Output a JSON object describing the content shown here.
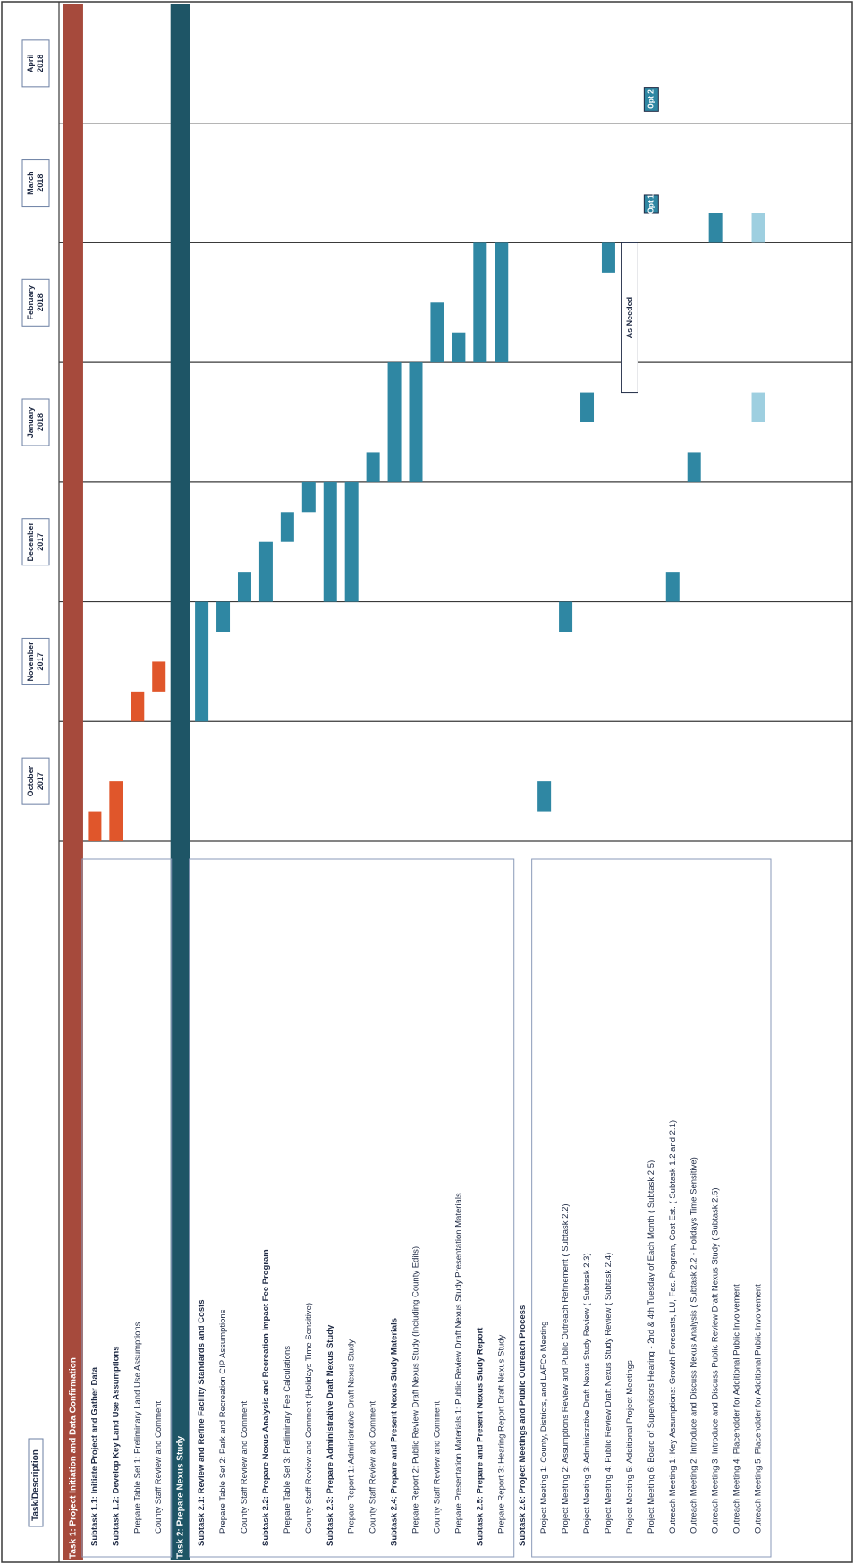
{
  "header": {
    "label": "Task/Description"
  },
  "colors": {
    "task1": "#a64a3c",
    "task2": "#1e5566",
    "bar_orange": "#e0562b",
    "bar_teal": "#2f87a3",
    "bar_light": "#9ecfe0",
    "border": "#3a3a3a"
  },
  "months": [
    {
      "label": "October\n2017"
    },
    {
      "label": "November\n2017"
    },
    {
      "label": "December\n2017"
    },
    {
      "label": "January\n2018"
    },
    {
      "label": "February\n2018"
    },
    {
      "label": "March\n2018"
    },
    {
      "label": "April\n2018"
    }
  ],
  "rows": [
    {
      "text": "Task 1: Project Initiation and Data Confirmation",
      "kind": "main",
      "color": "task1"
    },
    {
      "text": "Subtask 1.1: Initiate Project and Gather Data",
      "kind": "sub",
      "bar": [
        0.0,
        0.25
      ],
      "color": "bar_orange"
    },
    {
      "text": "Subtask 1.2: Develop Key Land Use Assumptions",
      "kind": "sub",
      "bar": [
        0.0,
        0.5
      ],
      "color": "bar_orange"
    },
    {
      "text": "Prepare Table Set 1: Preliminary Land Use Assumptions",
      "kind": "item",
      "bar": [
        1.0,
        1.25
      ],
      "color": "bar_orange"
    },
    {
      "text": "County Staff Review and Comment",
      "kind": "item",
      "bar": [
        1.25,
        1.5
      ],
      "color": "bar_orange"
    },
    {
      "text": "Task 2: Prepare Nexus Study",
      "kind": "main",
      "color": "task2"
    },
    {
      "text": "Subtask 2.1: Review and Refine Facility Standards and Costs",
      "kind": "sub",
      "bar": [
        1.0,
        2.0
      ],
      "color": "bar_teal"
    },
    {
      "text": "Prepare Table Set 2: Park and Recreation CIP Assumptions",
      "kind": "item",
      "bar": [
        1.75,
        2.0
      ],
      "color": "bar_teal"
    },
    {
      "text": "County Staff Review and Comment",
      "kind": "item",
      "bar": [
        2.0,
        2.25
      ],
      "color": "bar_teal"
    },
    {
      "text": "Subtask 2.2: Prepare Nexus Analysis and Recreation Impact Fee Program",
      "kind": "sub",
      "bar": [
        2.0,
        2.5
      ],
      "color": "bar_teal"
    },
    {
      "text": "Prepare Table Set 3: Preliminary Fee Calculations",
      "kind": "item",
      "bar": [
        2.5,
        2.75
      ],
      "color": "bar_teal"
    },
    {
      "text": "County Staff Review and Comment (Holidays Time Sensitive)",
      "kind": "item",
      "bar": [
        2.75,
        3.0
      ],
      "color": "bar_teal"
    },
    {
      "text": "Subtask 2.3: Prepare Administrative Draft Nexus Study",
      "kind": "sub",
      "bar": [
        2.0,
        3.0
      ],
      "color": "bar_teal"
    },
    {
      "text": "Prepare Report 1: Administrative Draft Nexus Study",
      "kind": "item",
      "bar": [
        2.0,
        3.0
      ],
      "color": "bar_teal"
    },
    {
      "text": "County Staff Review and Comment",
      "kind": "item",
      "bar": [
        3.0,
        3.25
      ],
      "color": "bar_teal"
    },
    {
      "text": "Subtask 2.4: Prepare and Present Nexus Study Materials",
      "kind": "sub",
      "bar": [
        3.0,
        4.0
      ],
      "color": "bar_teal"
    },
    {
      "text": "Prepare Report 2: Public Review Draft Nexus Study (Including County Edits)",
      "kind": "item",
      "bar": [
        3.0,
        4.0
      ],
      "color": "bar_teal"
    },
    {
      "text": "County Staff Review and Comment",
      "kind": "item",
      "bar": [
        4.0,
        4.5
      ],
      "color": "bar_teal"
    },
    {
      "text": "Prepare Presentation Materials 1: Public Review Draft Nexus Study Presentation Materials",
      "kind": "item",
      "bar": [
        4.0,
        4.25
      ],
      "color": "bar_teal"
    },
    {
      "text": "Subtask 2.5: Prepare and Present Nexus Study Report",
      "kind": "sub",
      "bar": [
        4.0,
        5.0
      ],
      "color": "bar_teal"
    },
    {
      "text": "Prepare Report 3: Hearing Report Draft Nexus Study",
      "kind": "item",
      "bar": [
        4.0,
        5.0
      ],
      "color": "bar_teal"
    },
    {
      "text": "Subtask 2.6: Project Meetings and Public Outreach Process",
      "kind": "sub"
    },
    {
      "text": "Project Meeting 1: County, Districts, and LAFCo Meeting",
      "kind": "item",
      "bar": [
        0.25,
        0.5
      ],
      "color": "bar_teal"
    },
    {
      "text": "Project Meeting 2: Assumptions Review and Public Outreach Refinement ( Subtask 2.2)",
      "kind": "item",
      "bar": [
        1.75,
        2.0
      ],
      "color": "bar_teal"
    },
    {
      "text": "Project Meeting 3: Administrative Draft Nexus Study Review ( Subtask 2.3)",
      "kind": "item",
      "bar": [
        3.5,
        3.75
      ],
      "color": "bar_teal"
    },
    {
      "text": "Project Meeting 4: Public Review Draft Nexus Study Review ( Subtask 2.4)",
      "kind": "item",
      "bar": [
        4.75,
        5.0
      ],
      "color": "bar_teal"
    },
    {
      "text": "Project Meeting 5: Additional Project Meetings",
      "kind": "item"
    },
    {
      "text": "Project Meeting 6: Board of Supervisors Hearing - 2nd & 4th Tuesday of Each Month ( Subtask 2.5)",
      "kind": "item"
    },
    {
      "text": "Outreach Meeting 1: Key Assumptions: Growth Forecasts, LU, Fac. Program, Cost Est. ( Subtask 1.2 and 2.1)",
      "kind": "item",
      "bar": [
        2.0,
        2.25
      ],
      "color": "bar_teal"
    },
    {
      "text": "Outreach Meeting 2: Introduce and Discuss Nexus Analysis ( Subtask 2.2 - Holidays Time Sensitive)",
      "kind": "item",
      "bar": [
        3.0,
        3.25
      ],
      "color": "bar_teal"
    },
    {
      "text": "Outreach Meeting 3: Introduce and Discuss Public Review Draft Nexus Study ( Subtask 2.5)",
      "kind": "item",
      "bar": [
        5.0,
        5.25
      ],
      "color": "bar_teal"
    },
    {
      "text": "Outreach Meeting 4: Placeholder for Additional Public Involvement",
      "kind": "item"
    },
    {
      "text": "Outreach Meeting 5: Placeholder for Additional Public Involvement",
      "kind": "item",
      "bars": [
        [
          3.5,
          3.75
        ],
        [
          5.0,
          5.25
        ]
      ],
      "color": "bar_light"
    }
  ],
  "annotations": [
    {
      "text": "—— As Needed ——",
      "row": 26,
      "start": 3.75,
      "end": 5.0
    },
    {
      "text": "Opt 1",
      "row": 27,
      "start": 5.25,
      "end": 5.4,
      "box": true
    },
    {
      "text": "Opt 2",
      "row": 27,
      "start": 6.1,
      "end": 6.3,
      "box": true
    }
  ]
}
